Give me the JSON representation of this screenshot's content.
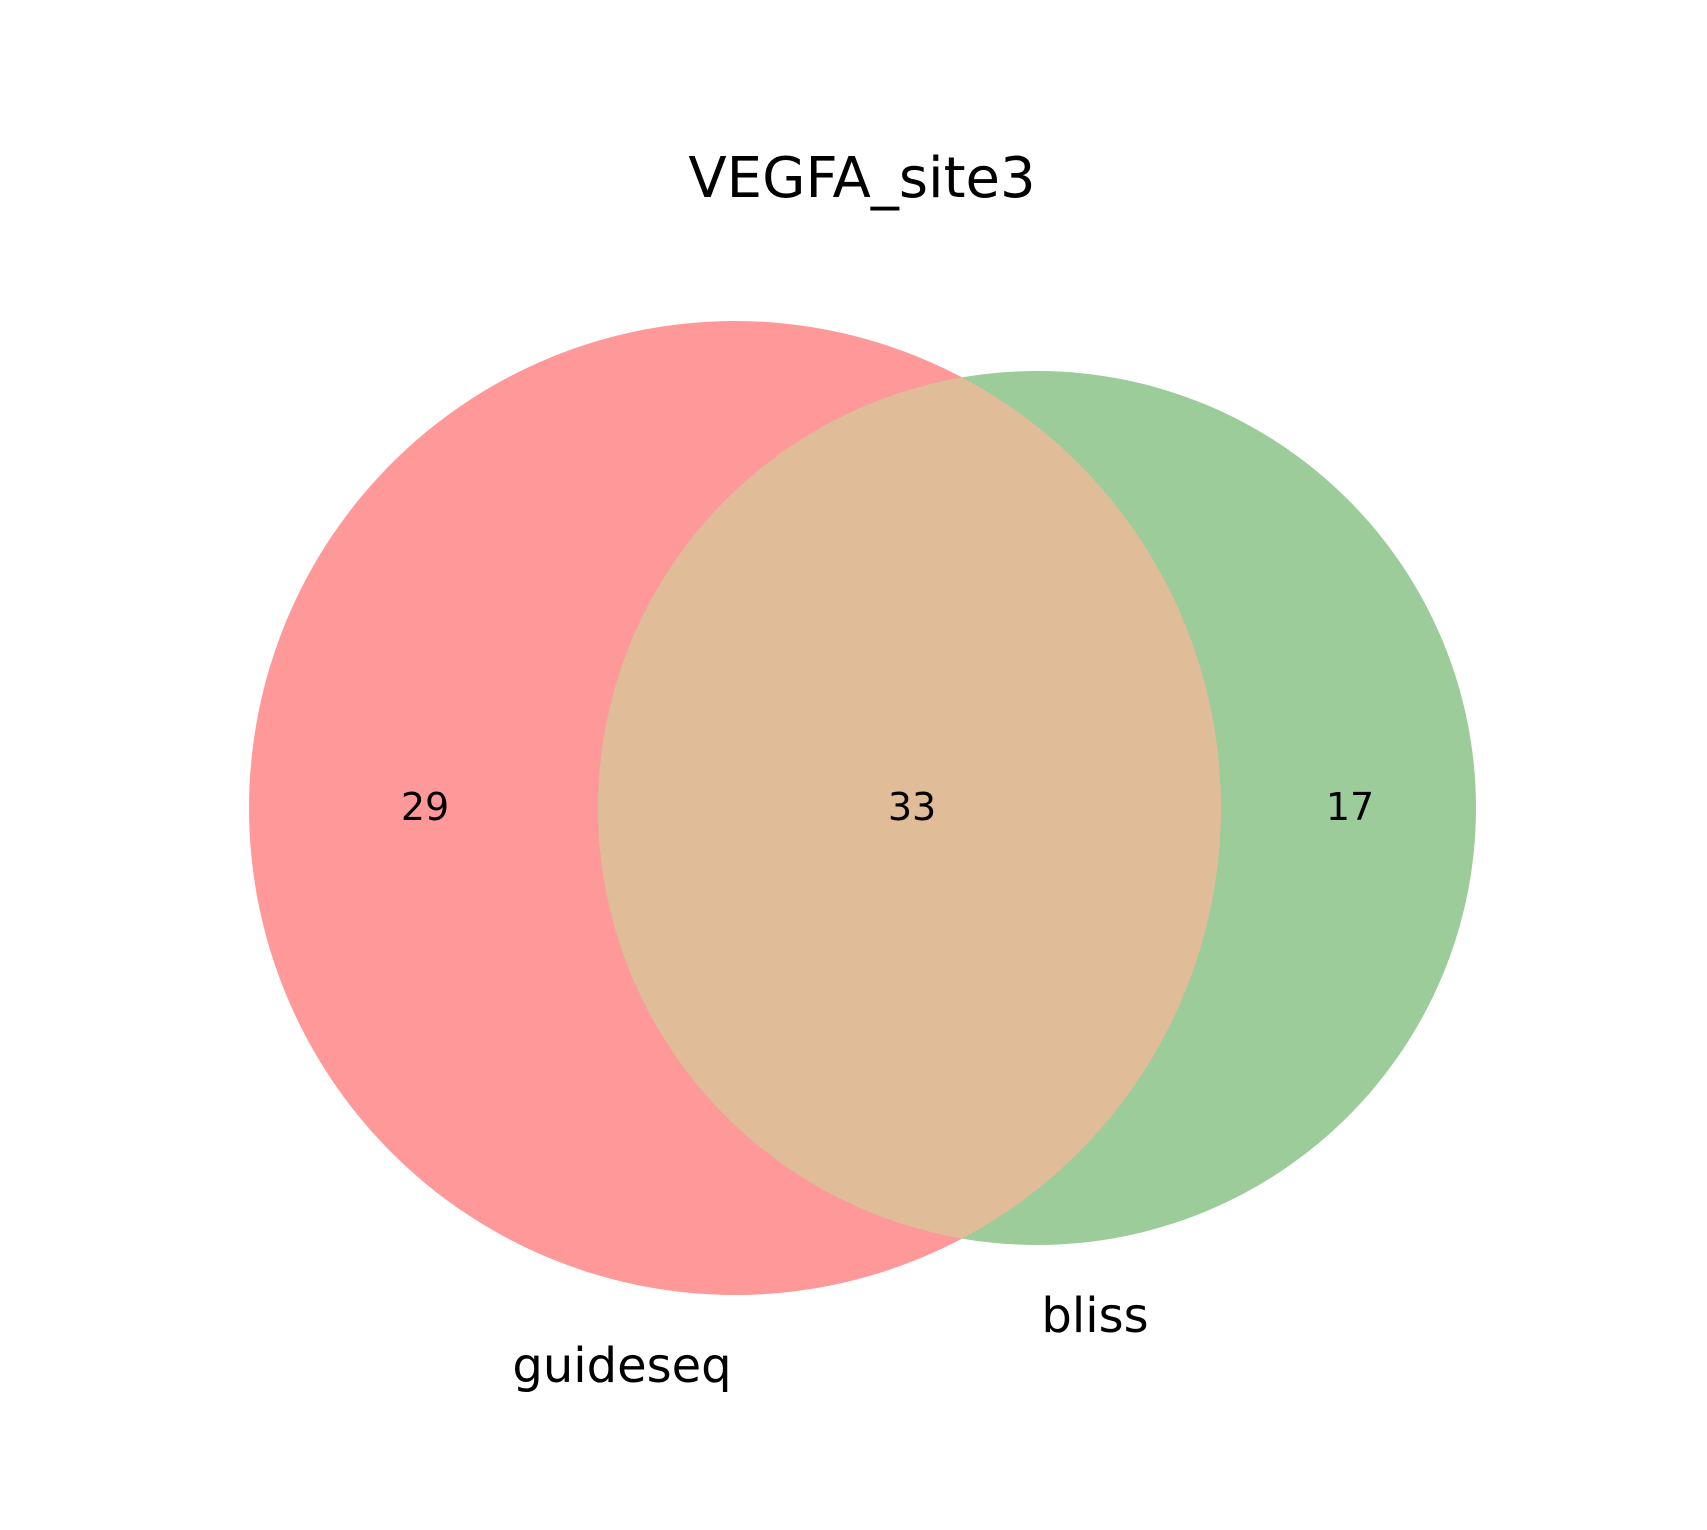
{
  "chart_data": {
    "type": "venn",
    "title": "VEGFA_site3",
    "sets": [
      {
        "name": "guideseq",
        "only_count": "29",
        "color": "#ff9999"
      },
      {
        "name": "bliss",
        "only_count": "17",
        "color": "#9bcc99"
      }
    ],
    "intersection": {
      "count": "33",
      "color": "#e0bc99"
    }
  }
}
